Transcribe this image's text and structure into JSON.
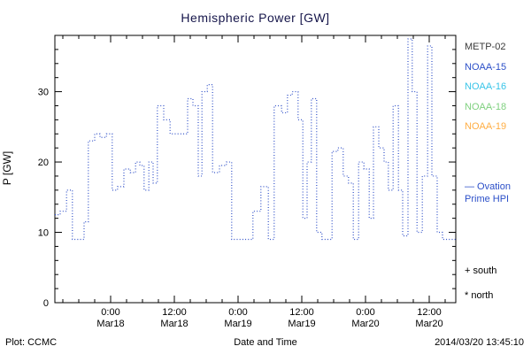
{
  "title": "Hemispheric Power [GW]",
  "ylabel": "P [GW]",
  "xlabel": "Date and Time",
  "footer": {
    "left": "Plot: CCMC",
    "right": "2014/03/20 13:45:10"
  },
  "legend": {
    "satellites": [
      {
        "label": "METP-02",
        "color": "#3a3a3a"
      },
      {
        "label": "NOAA-15",
        "color": "#2b4fc8"
      },
      {
        "label": "NOAA-16",
        "color": "#37c4e8"
      },
      {
        "label": "NOAA-18",
        "color": "#7ed07e"
      },
      {
        "label": "NOAA-19",
        "color": "#ffad42"
      }
    ],
    "series_note": {
      "line1": "— Ovation",
      "line2": "Prime HPI",
      "color": "#2b4fc8"
    },
    "markers": [
      {
        "symbol": "+",
        "label": "south",
        "color": "#000000"
      },
      {
        "symbol": "*",
        "label": "north",
        "color": "#000000"
      }
    ]
  },
  "chart_data": {
    "type": "line",
    "step": true,
    "line_style": "dotted",
    "line_color": "#3050c8",
    "title": "Hemispheric Power [GW]",
    "xlabel": "Date and Time",
    "ylabel": "P [GW]",
    "ylim": [
      0,
      38
    ],
    "xlim_hours": [
      0,
      75.5
    ],
    "y_ticks": [
      0,
      10,
      20,
      30
    ],
    "y_minor_step": 2,
    "x_minor_step": 3,
    "x_ticks": [
      {
        "t": 10.5,
        "time": "0:00",
        "date": "Mar18"
      },
      {
        "t": 22.5,
        "time": "12:00",
        "date": "Mar18"
      },
      {
        "t": 34.5,
        "time": "0:00",
        "date": "Mar19"
      },
      {
        "t": 46.5,
        "time": "12:00",
        "date": "Mar19"
      },
      {
        "t": 58.5,
        "time": "0:00",
        "date": "Mar20"
      },
      {
        "t": 70.5,
        "time": "12:00",
        "date": "Mar20"
      }
    ],
    "points": [
      [
        0,
        12.5
      ],
      [
        1,
        13
      ],
      [
        2.2,
        16
      ],
      [
        3.3,
        9
      ],
      [
        5.5,
        11.5
      ],
      [
        6.3,
        23
      ],
      [
        7.5,
        24
      ],
      [
        8.5,
        23.5
      ],
      [
        9.7,
        24
      ],
      [
        10.8,
        16
      ],
      [
        11.8,
        16.5
      ],
      [
        13,
        19
      ],
      [
        14.2,
        18.5
      ],
      [
        15.2,
        20
      ],
      [
        16,
        19.5
      ],
      [
        16.8,
        16
      ],
      [
        17.7,
        20
      ],
      [
        18.5,
        17
      ],
      [
        19.3,
        28
      ],
      [
        20.5,
        26
      ],
      [
        21.7,
        24
      ],
      [
        25,
        29
      ],
      [
        26,
        28
      ],
      [
        27,
        18
      ],
      [
        27.7,
        30
      ],
      [
        28.7,
        31
      ],
      [
        29.7,
        18.5
      ],
      [
        31,
        19.5
      ],
      [
        32.3,
        20
      ],
      [
        33.3,
        9
      ],
      [
        37.3,
        13
      ],
      [
        38.8,
        16.5
      ],
      [
        40.2,
        9
      ],
      [
        41.3,
        28
      ],
      [
        42.7,
        27
      ],
      [
        43.8,
        29.5
      ],
      [
        44.7,
        30
      ],
      [
        45.8,
        26
      ],
      [
        46.7,
        12
      ],
      [
        47.5,
        20
      ],
      [
        48.3,
        29
      ],
      [
        49.3,
        10
      ],
      [
        50.3,
        9
      ],
      [
        52.2,
        21.5
      ],
      [
        53.3,
        22
      ],
      [
        54.3,
        18
      ],
      [
        55.3,
        17
      ],
      [
        56.2,
        9
      ],
      [
        57.2,
        20
      ],
      [
        58.2,
        19
      ],
      [
        59.2,
        12
      ],
      [
        60,
        25
      ],
      [
        61,
        22
      ],
      [
        62,
        20
      ],
      [
        62.8,
        16
      ],
      [
        63.7,
        28
      ],
      [
        64.7,
        16
      ],
      [
        65.5,
        9.5
      ],
      [
        66.5,
        37.5
      ],
      [
        67.3,
        30
      ],
      [
        68.2,
        10
      ],
      [
        69.2,
        18
      ],
      [
        70.2,
        36.5
      ],
      [
        71,
        18
      ],
      [
        72,
        10
      ],
      [
        73,
        9
      ]
    ]
  }
}
